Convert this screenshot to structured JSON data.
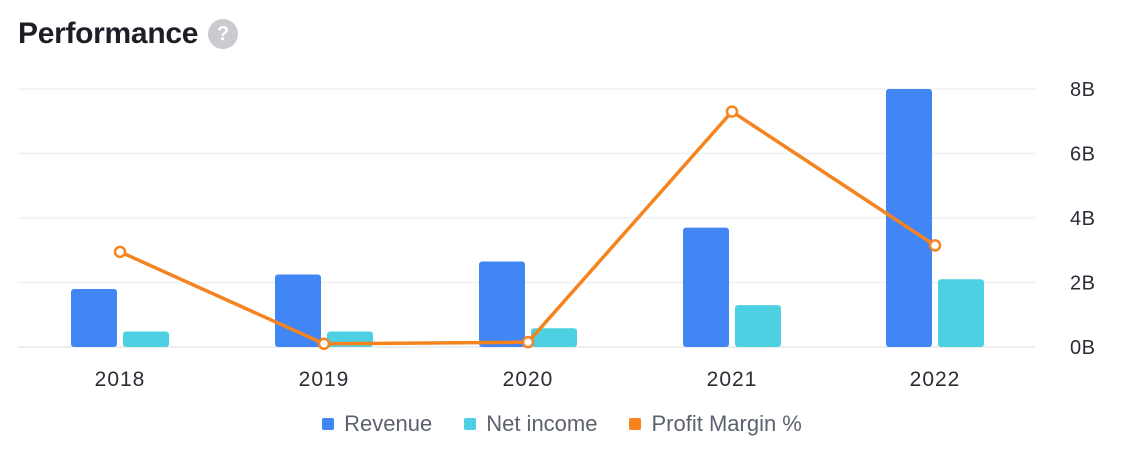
{
  "header": {
    "title": "Performance",
    "help_glyph": "?"
  },
  "chart_data": {
    "type": "bar",
    "categories": [
      "2018",
      "2019",
      "2020",
      "2021",
      "2022"
    ],
    "yticks": [
      "0B",
      "2B",
      "4B",
      "6B",
      "8B"
    ],
    "ylim": [
      0,
      8
    ],
    "grid": true,
    "legend_position": "bottom",
    "series": [
      {
        "name": "Revenue",
        "kind": "bar",
        "color": "#4285f4",
        "values": [
          1.8,
          2.25,
          2.65,
          3.7,
          8.0
        ]
      },
      {
        "name": "Net income",
        "kind": "bar",
        "color": "#4dd0e1",
        "values": [
          0.48,
          0.48,
          0.58,
          1.3,
          2.1
        ]
      },
      {
        "name": "Profit Margin %",
        "kind": "line",
        "color": "#f5841f",
        "values": [
          2.95,
          0.1,
          0.15,
          7.3,
          3.15
        ]
      }
    ]
  }
}
